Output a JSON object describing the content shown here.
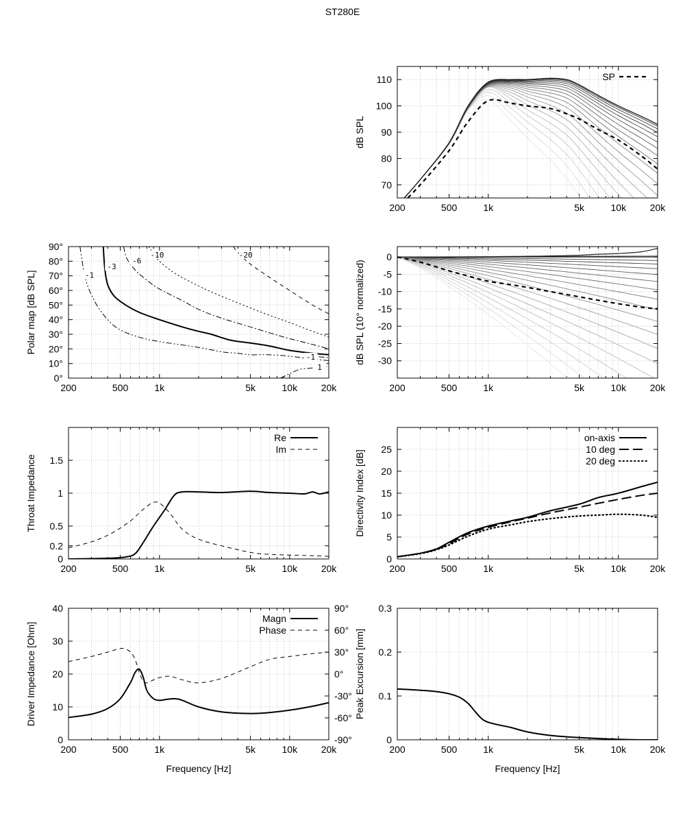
{
  "title": "ST280E",
  "chart_data": [
    {
      "id": "spl",
      "type": "line",
      "ylabel": "dB SPL",
      "xlabel": "",
      "xscale": "log",
      "xlim": [
        200,
        20000
      ],
      "ylim": [
        65,
        115
      ],
      "xticks": [
        200,
        500,
        1000,
        5000,
        10000,
        20000
      ],
      "xtick_labels": [
        "200",
        "500",
        "1k",
        "5k",
        "10k",
        "20k"
      ],
      "yticks": [
        70,
        80,
        90,
        100,
        110
      ],
      "ytick_labels": [
        "70",
        "80",
        "90",
        "100",
        "110"
      ],
      "legend": [
        {
          "label": "SP",
          "style": "dashed"
        }
      ],
      "legend_position": "top-right",
      "off_axis_curve_angles_deg": [
        0,
        5,
        10,
        15,
        20,
        25,
        30,
        35,
        40,
        45,
        50,
        55,
        60,
        65,
        70,
        75,
        80,
        85,
        90
      ],
      "series": [
        {
          "angle": 0,
          "x": [
            200,
            300,
            500,
            700,
            1000,
            1500,
            2000,
            3000,
            4000,
            5000,
            7000,
            10000,
            15000,
            20000
          ],
          "y": [
            62,
            72,
            86,
            100,
            109,
            110,
            110,
            110.5,
            110,
            108,
            104,
            100,
            96,
            93
          ]
        },
        {
          "name": "SP",
          "style": "dashed",
          "x": [
            200,
            300,
            500,
            700,
            1000,
            1500,
            2000,
            3000,
            4000,
            5000,
            7000,
            10000,
            15000,
            20000
          ],
          "y": [
            61,
            70,
            83,
            94,
            102,
            101,
            100,
            99,
            97,
            95,
            91,
            87,
            81,
            76
          ]
        }
      ]
    },
    {
      "id": "polar",
      "type": "contour",
      "ylabel": "Polar map [dB SPL]",
      "xlabel": "",
      "xscale": "log",
      "xlim": [
        200,
        20000
      ],
      "ylim": [
        0,
        90
      ],
      "xticks": [
        200,
        500,
        1000,
        5000,
        10000,
        20000
      ],
      "xtick_labels": [
        "200",
        "500",
        "1k",
        "5k",
        "10k",
        "20k"
      ],
      "yticks": [
        0,
        10,
        20,
        30,
        40,
        50,
        60,
        70,
        80,
        90
      ],
      "ytick_labels": [
        "0°",
        "10°",
        "20°",
        "30°",
        "40°",
        "50°",
        "60°",
        "70°",
        "80°",
        "90°"
      ],
      "contours": [
        {
          "level": "-1",
          "style": "dashdotdot",
          "x": [
            245,
            270,
            320,
            400,
            500,
            700,
            1000,
            2000,
            3000,
            4000,
            5000,
            7000,
            10000,
            15000,
            20000
          ],
          "y": [
            90,
            68,
            52,
            40,
            33,
            28,
            25,
            21,
            18,
            17,
            16,
            16,
            15,
            13,
            12
          ]
        },
        {
          "level": "-3",
          "style": "solid",
          "x": [
            370,
            380,
            400,
            450,
            550,
            700,
            1000,
            1500,
            2000,
            2500,
            3500,
            5000,
            7000,
            10000,
            15000,
            20000
          ],
          "y": [
            90,
            75,
            64,
            56,
            50,
            45,
            40,
            35,
            32,
            30,
            26,
            24,
            22,
            19,
            17,
            16
          ]
        },
        {
          "level": "-6",
          "style": "dashdot",
          "x": [
            530,
            560,
            650,
            800,
            1000,
            1500,
            2000,
            3000,
            5000,
            7000,
            10000,
            15000,
            20000
          ],
          "y": [
            90,
            82,
            74,
            67,
            61,
            53,
            47,
            41,
            35,
            31,
            27,
            23,
            20
          ]
        },
        {
          "level": "-10",
          "style": "dotted",
          "x": [
            830,
            900,
            1000,
            1300,
            2000,
            3000,
            5000,
            7000,
            10000,
            15000,
            20000
          ],
          "y": [
            90,
            85,
            80,
            72,
            63,
            56,
            48,
            43,
            38,
            32,
            28
          ]
        },
        {
          "level": "-20",
          "style": "dashed",
          "x": [
            3700,
            4000,
            5000,
            7000,
            10000,
            15000,
            20000
          ],
          "y": [
            90,
            86,
            78,
            69,
            60,
            50,
            44
          ]
        },
        {
          "level": "-1",
          "style": "dashdotdot",
          "x": [
            13000,
            15000,
            20000
          ],
          "y": [
            15,
            15,
            14
          ]
        },
        {
          "level": "1",
          "style": "dashdotdot",
          "x": [
            8500,
            10000,
            12000,
            15000,
            20000
          ],
          "y": [
            0,
            3,
            6,
            7,
            8
          ]
        }
      ],
      "contour_labels": [
        {
          "text": "-1",
          "x": 290,
          "y": 70
        },
        {
          "text": "-3",
          "x": 430,
          "y": 76
        },
        {
          "text": "-6",
          "x": 670,
          "y": 80
        },
        {
          "text": "-10",
          "x": 960,
          "y": 84
        },
        {
          "text": "-20",
          "x": 4600,
          "y": 84
        },
        {
          "text": "-1",
          "x": 14500,
          "y": 14
        },
        {
          "text": "1",
          "x": 17000,
          "y": 7
        }
      ]
    },
    {
      "id": "norm",
      "type": "line",
      "ylabel": "dB SPL (10° normalized)",
      "xlabel": "",
      "xscale": "log",
      "xlim": [
        200,
        20000
      ],
      "ylim": [
        -35,
        3
      ],
      "xticks": [
        200,
        500,
        1000,
        5000,
        10000,
        20000
      ],
      "xtick_labels": [
        "200",
        "500",
        "1k",
        "5k",
        "10k",
        "20k"
      ],
      "yticks": [
        0,
        -5,
        -10,
        -15,
        -20,
        -25,
        -30
      ],
      "ytick_labels": [
        "0",
        "-5",
        "-10",
        "-15",
        "-20",
        "-25",
        "-30"
      ],
      "series": [
        {
          "name": "SP",
          "style": "dashed",
          "x": [
            200,
            300,
            500,
            700,
            1000,
            1500,
            2000,
            3000,
            5000,
            7000,
            10000,
            15000,
            20000
          ],
          "y": [
            0,
            -1.5,
            -4,
            -5.5,
            -7,
            -8,
            -8.8,
            -10,
            -11.5,
            -12.5,
            -13.5,
            -14.5,
            -15
          ]
        },
        {
          "name": "0",
          "x": [
            200,
            500,
            1000,
            2000,
            3000,
            5000,
            7000,
            10000,
            15000,
            20000
          ],
          "y": [
            0,
            0,
            0.1,
            0.2,
            0.3,
            0.5,
            0.8,
            1,
            1.5,
            2.5
          ]
        }
      ]
    },
    {
      "id": "throat",
      "type": "line",
      "ylabel": "Throat Impedance",
      "xlabel": "",
      "xscale": "log",
      "xlim": [
        200,
        20000
      ],
      "ylim": [
        0,
        2
      ],
      "xticks": [
        200,
        500,
        1000,
        5000,
        10000,
        20000
      ],
      "xtick_labels": [
        "200",
        "500",
        "1k",
        "5k",
        "10k",
        "20k"
      ],
      "yticks": [
        0,
        0.2,
        0.5,
        1,
        1.5
      ],
      "ytick_labels": [
        "0",
        "0.2",
        "0.5",
        "1",
        "1.5"
      ],
      "legend": [
        {
          "label": "Re",
          "style": "solid"
        },
        {
          "label": "Im",
          "style": "dashed"
        }
      ],
      "legend_position": "top-right",
      "series": [
        {
          "name": "Re",
          "style": "solid",
          "x": [
            200,
            400,
            550,
            650,
            750,
            900,
            1100,
            1300,
            1500,
            2000,
            3000,
            5000,
            7000,
            10000,
            13000,
            15000,
            17000,
            20000
          ],
          "y": [
            0,
            0.01,
            0.03,
            0.08,
            0.25,
            0.5,
            0.75,
            0.97,
            1.02,
            1.02,
            1.01,
            1.03,
            1.01,
            1.0,
            0.99,
            1.02,
            0.99,
            1.02
          ]
        },
        {
          "name": "Im",
          "style": "dashed",
          "x": [
            200,
            300,
            400,
            500,
            600,
            700,
            800,
            900,
            1000,
            1200,
            1500,
            2000,
            3000,
            5000,
            7000,
            10000,
            15000,
            20000
          ],
          "y": [
            0.17,
            0.26,
            0.36,
            0.47,
            0.58,
            0.7,
            0.8,
            0.86,
            0.85,
            0.7,
            0.45,
            0.3,
            0.2,
            0.1,
            0.07,
            0.06,
            0.05,
            0.04
          ]
        }
      ]
    },
    {
      "id": "di",
      "type": "line",
      "ylabel": "Directivity Index [dB]",
      "xlabel": "",
      "xscale": "log",
      "xlim": [
        200,
        20000
      ],
      "ylim": [
        0,
        30
      ],
      "xticks": [
        200,
        500,
        1000,
        5000,
        10000,
        20000
      ],
      "xtick_labels": [
        "200",
        "500",
        "1k",
        "5k",
        "10k",
        "20k"
      ],
      "yticks": [
        0,
        5,
        10,
        15,
        20,
        25
      ],
      "ytick_labels": [
        "0",
        "5",
        "10",
        "15",
        "20",
        "25"
      ],
      "legend": [
        {
          "label": "on-axis",
          "style": "solid"
        },
        {
          "label": "10 deg",
          "style": "longdash"
        },
        {
          "label": "20 deg",
          "style": "dotted"
        }
      ],
      "legend_position": "top-right",
      "series": [
        {
          "name": "on-axis",
          "style": "solid",
          "x": [
            200,
            300,
            400,
            500,
            700,
            1000,
            1500,
            2000,
            3000,
            5000,
            7000,
            10000,
            15000,
            20000
          ],
          "y": [
            0.5,
            1.3,
            2.3,
            3.8,
            6,
            7.5,
            8.7,
            9.5,
            11,
            12.5,
            14,
            15,
            16.5,
            17.5
          ]
        },
        {
          "name": "10 deg",
          "style": "longdash",
          "x": [
            200,
            300,
            400,
            500,
            700,
            1000,
            1500,
            2000,
            3000,
            5000,
            7000,
            10000,
            15000,
            20000
          ],
          "y": [
            0.5,
            1.3,
            2.2,
            3.5,
            5.7,
            7.2,
            8.5,
            9.3,
            10.5,
            11.8,
            12.7,
            13.6,
            14.5,
            15
          ]
        },
        {
          "name": "20 deg",
          "style": "dotted",
          "x": [
            200,
            300,
            400,
            500,
            700,
            1000,
            1500,
            2000,
            3000,
            5000,
            7000,
            10000,
            15000,
            20000
          ],
          "y": [
            0.5,
            1.2,
            2.1,
            3.2,
            5.2,
            6.8,
            7.8,
            8.5,
            9.2,
            9.8,
            10,
            10.2,
            10,
            9.5
          ]
        }
      ]
    },
    {
      "id": "driver",
      "type": "line",
      "ylabel": "Driver Impedance [Ohm]",
      "y2label": "",
      "xlabel": "Frequency [Hz]",
      "xscale": "log",
      "xlim": [
        200,
        20000
      ],
      "ylim": [
        0,
        40
      ],
      "y2lim": [
        -90,
        90
      ],
      "xticks": [
        200,
        500,
        1000,
        5000,
        10000,
        20000
      ],
      "xtick_labels": [
        "200",
        "500",
        "1k",
        "5k",
        "10k",
        "20k"
      ],
      "yticks": [
        0,
        10,
        20,
        30,
        40
      ],
      "ytick_labels": [
        "0",
        "10",
        "20",
        "30",
        "40"
      ],
      "y2ticks": [
        -90,
        -60,
        -30,
        0,
        30,
        60,
        90
      ],
      "y2tick_labels": [
        "-90°",
        "-60°",
        "-30°",
        "0°",
        "30°",
        "60°",
        "90°"
      ],
      "legend": [
        {
          "label": "Magn",
          "style": "solid"
        },
        {
          "label": "Phase",
          "style": "dashed"
        }
      ],
      "legend_position": "top-right",
      "series": [
        {
          "name": "Magn",
          "axis": "left",
          "style": "solid",
          "x": [
            200,
            300,
            400,
            500,
            600,
            650,
            700,
            750,
            800,
            900,
            1000,
            1100,
            1300,
            1500,
            2000,
            3000,
            5000,
            7000,
            10000,
            15000,
            20000
          ],
          "y": [
            6.8,
            7.8,
            9.5,
            12.5,
            17.5,
            20.5,
            21.5,
            19,
            15,
            12.5,
            12,
            12.2,
            12.5,
            12,
            10,
            8.5,
            8,
            8.3,
            9,
            10.2,
            11.3
          ]
        },
        {
          "name": "Phase",
          "axis": "right",
          "style": "dashed",
          "x": [
            200,
            300,
            400,
            500,
            550,
            600,
            650,
            700,
            750,
            800,
            900,
            1000,
            1200,
            1500,
            2000,
            3000,
            5000,
            7000,
            10000,
            15000,
            20000
          ],
          "y": [
            17,
            24,
            30,
            35,
            34,
            30,
            20,
            2,
            -10,
            -12,
            -8,
            -5,
            -3,
            -8,
            -12,
            -6,
            10,
            20,
            24,
            28,
            30
          ]
        }
      ]
    },
    {
      "id": "excursion",
      "type": "line",
      "ylabel": "Peak Excursion [mm]",
      "xlabel": "Frequency [Hz]",
      "xscale": "log",
      "xlim": [
        200,
        20000
      ],
      "ylim": [
        0,
        0.3
      ],
      "xticks": [
        200,
        500,
        1000,
        5000,
        10000,
        20000
      ],
      "xtick_labels": [
        "200",
        "500",
        "1k",
        "5k",
        "10k",
        "20k"
      ],
      "yticks": [
        0,
        0.1,
        0.2,
        0.3
      ],
      "ytick_labels": [
        "0",
        "0.1",
        "0.2",
        "0.3"
      ],
      "series": [
        {
          "name": "excursion",
          "style": "solid",
          "x": [
            200,
            300,
            400,
            500,
            600,
            700,
            800,
            900,
            1000,
            1200,
            1500,
            2000,
            3000,
            5000,
            7000,
            10000,
            15000,
            20000
          ],
          "y": [
            0.116,
            0.113,
            0.11,
            0.105,
            0.097,
            0.083,
            0.063,
            0.047,
            0.04,
            0.034,
            0.028,
            0.018,
            0.01,
            0.005,
            0.003,
            0.001,
            0.0,
            0.0
          ]
        }
      ]
    }
  ]
}
